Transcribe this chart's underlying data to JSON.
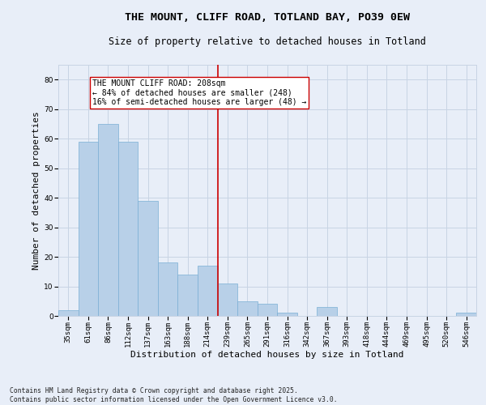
{
  "title_line1": "THE MOUNT, CLIFF ROAD, TOTLAND BAY, PO39 0EW",
  "title_line2": "Size of property relative to detached houses in Totland",
  "xlabel": "Distribution of detached houses by size in Totland",
  "ylabel": "Number of detached properties",
  "categories": [
    "35sqm",
    "61sqm",
    "86sqm",
    "112sqm",
    "137sqm",
    "163sqm",
    "188sqm",
    "214sqm",
    "239sqm",
    "265sqm",
    "291sqm",
    "316sqm",
    "342sqm",
    "367sqm",
    "393sqm",
    "418sqm",
    "444sqm",
    "469sqm",
    "495sqm",
    "520sqm",
    "546sqm"
  ],
  "values": [
    2,
    59,
    65,
    59,
    39,
    18,
    14,
    17,
    11,
    5,
    4,
    1,
    0,
    3,
    0,
    0,
    0,
    0,
    0,
    0,
    1
  ],
  "bar_color": "#b8d0e8",
  "bar_edge_color": "#7aafd4",
  "vline_x": 7.5,
  "vline_color": "#cc0000",
  "annotation_text": "THE MOUNT CLIFF ROAD: 208sqm\n← 84% of detached houses are smaller (248)\n16% of semi-detached houses are larger (48) →",
  "annotation_box_color": "#ffffff",
  "annotation_box_edge": "#cc0000",
  "ylim": [
    0,
    85
  ],
  "yticks": [
    0,
    10,
    20,
    30,
    40,
    50,
    60,
    70,
    80
  ],
  "grid_color": "#c8d4e4",
  "background_color": "#e8eef8",
  "footnote": "Contains HM Land Registry data © Crown copyright and database right 2025.\nContains public sector information licensed under the Open Government Licence v3.0.",
  "title_fontsize": 9.5,
  "subtitle_fontsize": 8.5,
  "axis_fontsize": 8,
  "tick_fontsize": 6.5,
  "annot_fontsize": 7,
  "footnote_fontsize": 5.8
}
